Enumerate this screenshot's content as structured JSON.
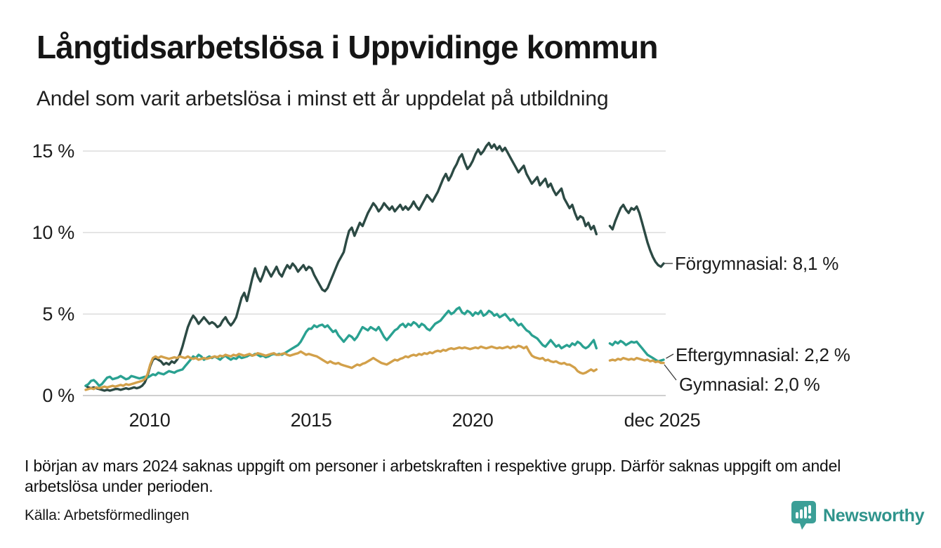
{
  "chart_data": {
    "type": "line",
    "title": "Långtidsarbetslösa i Uppvidinge kommun",
    "subtitle": "Andel som varit arbetslösa i minst ett år uppdelat på utbildning",
    "x_unit": "month",
    "x_start": "2008-01",
    "x_end": "2025-12",
    "ylim": [
      0,
      16
    ],
    "grid": "horizontal",
    "legend_position": "right-end-labels",
    "y_ticks": [
      {
        "value": 0,
        "label": "0 %"
      },
      {
        "value": 5,
        "label": "5 %"
      },
      {
        "value": 10,
        "label": "10 %"
      },
      {
        "value": 15,
        "label": "15 %"
      }
    ],
    "x_ticks": [
      {
        "month_index": 24,
        "label": "2010"
      },
      {
        "month_index": 84,
        "label": "2015"
      },
      {
        "month_index": 144,
        "label": "2020"
      },
      {
        "month_index": 215,
        "label": "dec 2025"
      }
    ],
    "series": [
      {
        "name": "Förgymnasial",
        "end_value": "8,1 %",
        "end_label": "Förgymnasial: 8,1 %",
        "color": "#2c4a44",
        "values": [
          0.6,
          0.5,
          0.45,
          0.5,
          0.45,
          0.4,
          0.35,
          0.3,
          0.35,
          0.3,
          0.35,
          0.4,
          0.4,
          0.35,
          0.4,
          0.45,
          0.4,
          0.45,
          0.5,
          0.45,
          0.5,
          0.6,
          0.8,
          1.2,
          1.8,
          2.2,
          2.3,
          2.2,
          2.1,
          1.9,
          2.0,
          1.9,
          2.1,
          2.0,
          2.2,
          2.5,
          3.0,
          3.6,
          4.2,
          4.6,
          4.9,
          4.7,
          4.4,
          4.6,
          4.8,
          4.6,
          4.4,
          4.5,
          4.4,
          4.2,
          4.3,
          4.6,
          4.8,
          4.5,
          4.3,
          4.5,
          4.8,
          5.4,
          6.0,
          6.3,
          5.8,
          6.5,
          7.2,
          7.8,
          7.3,
          7.0,
          7.4,
          7.9,
          7.6,
          7.3,
          7.6,
          7.9,
          7.5,
          7.3,
          7.7,
          8.0,
          7.8,
          8.1,
          7.9,
          7.6,
          7.8,
          8.0,
          7.7,
          7.9,
          7.8,
          7.4,
          7.1,
          6.8,
          6.5,
          6.4,
          6.6,
          7.0,
          7.4,
          7.8,
          8.2,
          8.5,
          8.8,
          9.5,
          10.1,
          10.3,
          9.8,
          10.2,
          10.6,
          10.4,
          10.8,
          11.2,
          11.5,
          11.8,
          11.6,
          11.3,
          11.5,
          11.8,
          11.6,
          11.4,
          11.6,
          11.3,
          11.5,
          11.7,
          11.4,
          11.6,
          11.4,
          11.6,
          11.9,
          11.6,
          11.4,
          11.7,
          12.0,
          12.3,
          12.1,
          11.9,
          12.2,
          12.5,
          12.9,
          13.3,
          13.6,
          13.2,
          13.5,
          13.9,
          14.2,
          14.6,
          14.8,
          14.3,
          13.9,
          14.1,
          14.4,
          14.8,
          15.1,
          14.8,
          15.0,
          15.3,
          15.5,
          15.2,
          15.4,
          15.1,
          15.3,
          15.0,
          15.2,
          14.9,
          14.6,
          14.3,
          14.0,
          13.7,
          13.9,
          14.1,
          13.6,
          13.3,
          13.0,
          13.2,
          13.4,
          12.9,
          13.1,
          13.3,
          12.8,
          13.0,
          12.6,
          12.3,
          12.5,
          12.7,
          12.1,
          11.8,
          11.5,
          11.7,
          11.2,
          10.8,
          11.0,
          10.9,
          10.4,
          10.6,
          10.2,
          10.4,
          9.9,
          null,
          null,
          null,
          null,
          10.4,
          10.2,
          10.7,
          11.1,
          11.5,
          11.7,
          11.4,
          11.2,
          11.5,
          11.4,
          11.6,
          11.2,
          10.6,
          10.0,
          9.4,
          8.9,
          8.5,
          8.2,
          8.0,
          7.9,
          8.1
        ]
      },
      {
        "name": "Eftergymnasial",
        "end_value": "2,2 %",
        "end_label": "Eftergymnasial: 2,2 %",
        "color": "#2aa191",
        "values": [
          0.6,
          0.7,
          0.9,
          0.95,
          0.8,
          0.6,
          0.7,
          0.9,
          1.1,
          1.15,
          1.0,
          1.05,
          1.1,
          1.2,
          1.1,
          1.0,
          1.05,
          1.2,
          1.15,
          1.1,
          1.05,
          1.1,
          1.15,
          1.1,
          1.2,
          1.3,
          1.25,
          1.4,
          1.35,
          1.3,
          1.4,
          1.5,
          1.45,
          1.4,
          1.5,
          1.55,
          1.6,
          1.8,
          2.0,
          2.2,
          2.4,
          2.3,
          2.5,
          2.4,
          2.2,
          2.3,
          2.4,
          2.3,
          2.4,
          2.3,
          2.2,
          2.35,
          2.45,
          2.3,
          2.2,
          2.3,
          2.25,
          2.4,
          2.3,
          2.35,
          2.4,
          2.5,
          2.45,
          2.55,
          2.5,
          2.4,
          2.45,
          2.35,
          2.4,
          2.5,
          2.55,
          2.5,
          2.55,
          2.5,
          2.6,
          2.7,
          2.8,
          2.9,
          3.0,
          3.1,
          3.3,
          3.6,
          3.9,
          4.1,
          4.1,
          4.3,
          4.2,
          4.3,
          4.35,
          4.2,
          4.3,
          4.1,
          3.9,
          4.0,
          3.7,
          3.5,
          3.3,
          3.5,
          3.7,
          3.6,
          3.4,
          3.6,
          3.9,
          4.2,
          4.1,
          4.0,
          4.2,
          4.1,
          4.0,
          4.2,
          3.9,
          3.6,
          3.4,
          3.6,
          3.8,
          4.0,
          4.1,
          4.3,
          4.4,
          4.2,
          4.4,
          4.3,
          4.5,
          4.4,
          4.2,
          4.4,
          4.3,
          4.1,
          4.0,
          4.2,
          4.4,
          4.5,
          4.6,
          4.8,
          5.0,
          5.2,
          5.0,
          5.1,
          5.3,
          5.4,
          5.1,
          5.0,
          5.2,
          5.1,
          4.9,
          5.1,
          5.0,
          5.2,
          4.9,
          5.0,
          5.2,
          5.1,
          4.9,
          5.0,
          4.8,
          4.9,
          5.0,
          4.8,
          4.6,
          4.7,
          4.5,
          4.3,
          4.4,
          4.2,
          4.0,
          3.9,
          3.7,
          3.6,
          3.5,
          3.3,
          3.1,
          3.0,
          3.2,
          3.4,
          3.2,
          3.0,
          3.1,
          2.9,
          3.0,
          3.1,
          3.0,
          3.2,
          3.1,
          3.3,
          3.2,
          3.0,
          2.9,
          3.0,
          3.2,
          3.4,
          2.9,
          null,
          null,
          null,
          null,
          3.2,
          3.1,
          3.3,
          3.2,
          3.35,
          3.25,
          3.1,
          3.2,
          3.3,
          3.25,
          3.3,
          3.1,
          2.9,
          2.7,
          2.5,
          2.4,
          2.3,
          2.2,
          2.1,
          2.15,
          2.2
        ]
      },
      {
        "name": "Gymnasial",
        "end_value": "2,0 %",
        "end_label": "Gymnasial: 2,0 %",
        "color": "#d2a04a",
        "values": [
          0.35,
          0.4,
          0.45,
          0.4,
          0.5,
          0.45,
          0.5,
          0.55,
          0.5,
          0.55,
          0.6,
          0.55,
          0.6,
          0.65,
          0.6,
          0.7,
          0.65,
          0.7,
          0.75,
          0.8,
          0.85,
          0.9,
          1.0,
          1.3,
          1.9,
          2.3,
          2.4,
          2.3,
          2.4,
          2.35,
          2.3,
          2.25,
          2.3,
          2.35,
          2.3,
          2.4,
          2.35,
          2.3,
          2.4,
          2.3,
          2.25,
          2.3,
          2.2,
          2.25,
          2.3,
          2.25,
          2.3,
          2.35,
          2.4,
          2.35,
          2.45,
          2.4,
          2.5,
          2.45,
          2.4,
          2.5,
          2.45,
          2.55,
          2.5,
          2.45,
          2.5,
          2.55,
          2.45,
          2.5,
          2.6,
          2.55,
          2.5,
          2.45,
          2.5,
          2.55,
          2.6,
          2.5,
          2.5,
          2.55,
          2.6,
          2.5,
          2.45,
          2.5,
          2.55,
          2.6,
          2.7,
          2.6,
          2.5,
          2.55,
          2.5,
          2.45,
          2.4,
          2.3,
          2.2,
          2.1,
          2.0,
          2.1,
          2.0,
          1.95,
          2.0,
          1.9,
          1.85,
          1.8,
          1.75,
          1.7,
          1.8,
          1.9,
          1.85,
          1.95,
          2.0,
          2.1,
          2.2,
          2.3,
          2.2,
          2.1,
          2.0,
          1.95,
          1.9,
          2.0,
          2.1,
          2.2,
          2.15,
          2.25,
          2.3,
          2.4,
          2.35,
          2.45,
          2.5,
          2.45,
          2.55,
          2.5,
          2.6,
          2.55,
          2.65,
          2.6,
          2.7,
          2.75,
          2.7,
          2.8,
          2.75,
          2.85,
          2.9,
          2.85,
          2.9,
          2.95,
          2.9,
          2.95,
          2.9,
          2.85,
          2.9,
          2.95,
          2.9,
          3.0,
          2.95,
          2.9,
          2.95,
          3.0,
          2.95,
          2.9,
          2.95,
          2.9,
          2.95,
          3.0,
          2.9,
          3.0,
          2.95,
          3.05,
          3.0,
          2.9,
          3.0,
          2.7,
          2.45,
          2.35,
          2.3,
          2.25,
          2.3,
          2.15,
          2.2,
          2.1,
          2.05,
          2.1,
          2.0,
          1.95,
          2.0,
          1.9,
          1.9,
          1.8,
          1.7,
          1.5,
          1.4,
          1.35,
          1.4,
          1.5,
          1.6,
          1.5,
          1.6,
          null,
          null,
          null,
          null,
          2.15,
          2.2,
          2.15,
          2.25,
          2.2,
          2.3,
          2.25,
          2.2,
          2.25,
          2.2,
          2.3,
          2.25,
          2.2,
          2.15,
          2.2,
          2.1,
          2.15,
          2.05,
          2.1,
          2.0,
          2.0
        ]
      }
    ],
    "colors": {
      "grid": "#e5e5e5",
      "zero_line": "#cfcfcf",
      "brand_teal": "#2f948c"
    }
  },
  "footer": {
    "note": "I början av mars 2024 saknas uppgift om personer i arbetskraften i respektive grupp. Därför saknas uppgift om andel arbetslösa under perioden.",
    "source": "Källa: Arbetsförmedlingen",
    "logo_text": "Newsworthy"
  }
}
